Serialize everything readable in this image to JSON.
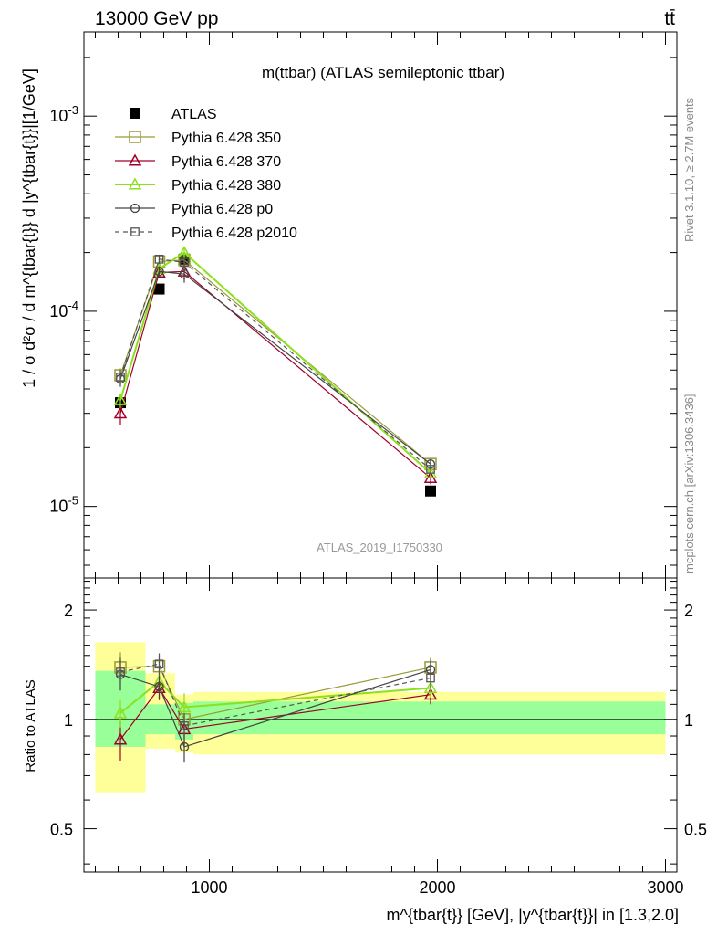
{
  "header": {
    "energy_label": "13000 GeV pp",
    "process_label": "tt̄"
  },
  "side_labels": {
    "rivet": "Rivet 3.1.10, ≥ 2.7M events",
    "source": "mcplots.cern.ch [arXiv:1306.3436]"
  },
  "chart_data": [
    {
      "type": "scatter",
      "title": "m(ttbar) (ATLAS semileptonic ttbar)",
      "ylabel": "1 / σ d²σ / d m^{tbar{t}} d |y^{tbar{t}}|[1/GeV]",
      "xlabel": "",
      "watermark": "ATLAS_2019_I1750330",
      "xlim": [
        450,
        3050
      ],
      "ylim": [
        4.3e-06,
        0.0027
      ],
      "yscale": "log",
      "ytick_labels": [
        "10^-5",
        "10^-4",
        "10^-3"
      ],
      "legend_position": "top-left",
      "x": [
        610,
        780,
        890,
        1970
      ],
      "series": [
        {
          "name": "ATLAS",
          "color": "#000000",
          "marker": "filled-square",
          "values": [
            3.4e-05,
            0.00013,
            0.000185,
            1.2e-05
          ],
          "yerr": [
            [
              3.2e-05,
              3.6e-05
            ],
            [
              0.000124,
              0.000136
            ],
            [
              0.000177,
              0.000193
            ],
            [
              1.15e-05,
              1.25e-05
            ]
          ]
        },
        {
          "name": "Pythia 6.428 350",
          "color": "#999a36",
          "marker": "open-square",
          "line": "solid",
          "values": [
            4.7e-05,
            0.00018,
            0.000183,
            1.65e-05
          ],
          "yerr": [
            [
              4.3e-05,
              5.1e-05
            ],
            [
              0.00017,
              0.00019
            ],
            [
              0.000172,
              0.000194
            ],
            [
              1.56e-05,
              1.74e-05
            ]
          ]
        },
        {
          "name": "Pythia 6.428 370",
          "color": "#a00028",
          "marker": "open-triangle",
          "line": "solid",
          "values": [
            3e-05,
            0.000158,
            0.00016,
            1.4e-05
          ],
          "yerr": [
            [
              2.6e-05,
              3.4e-05
            ],
            [
              0.000148,
              0.000168
            ],
            [
              0.000145,
              0.000175
            ],
            [
              1.3e-05,
              1.5e-05
            ]
          ]
        },
        {
          "name": "Pythia 6.428 380",
          "color": "#8ce01e",
          "marker": "open-triangle",
          "line": "solid",
          "values": [
            3.5e-05,
            0.000165,
            0.0002,
            1.48e-05
          ],
          "yerr": [
            [
              3.2e-05,
              3.8e-05
            ],
            [
              0.000155,
              0.000175
            ],
            [
              0.000185,
              0.000215
            ],
            [
              1.4e-05,
              1.56e-05
            ]
          ]
        },
        {
          "name": "Pythia 6.428 p0",
          "color": "#444444",
          "marker": "open-circle",
          "line": "solid",
          "values": [
            4.5e-05,
            0.00016,
            0.000155,
            1.65e-05
          ],
          "yerr": [
            [
              4.1e-05,
              4.9e-05
            ],
            [
              0.00015,
              0.00017
            ],
            [
              0.00014,
              0.00017
            ],
            [
              1.55e-05,
              1.75e-05
            ]
          ]
        },
        {
          "name": "Pythia 6.428 p2010",
          "color": "#555555",
          "marker": "open-square-small",
          "line": "dashed",
          "values": [
            4.6e-05,
            0.000185,
            0.000178,
            1.55e-05
          ],
          "yerr": [
            [
              4.2e-05,
              5e-05
            ],
            [
              0.000175,
              0.000195
            ],
            [
              0.000168,
              0.000188
            ],
            [
              1.47e-05,
              1.63e-05
            ]
          ]
        }
      ]
    },
    {
      "type": "scatter",
      "title": "",
      "ylabel": "Ratio to ATLAS",
      "xlabel": "m^{tbar{t}} [GeV], |y^{tbar{t}}| in [1.3,2.0]",
      "xlim": [
        450,
        3050
      ],
      "ylim": [
        0.38,
        2.45
      ],
      "yscale": "log",
      "ytick_labels": [
        "0.5",
        "1",
        "2"
      ],
      "xtick_labels": [
        "1000",
        "2000",
        "3000"
      ],
      "bands": [
        {
          "x": [
            500,
            720
          ],
          "yellow": [
            0.63,
            1.63
          ],
          "green": [
            0.84,
            1.36
          ]
        },
        {
          "x": [
            720,
            850
          ],
          "yellow": [
            0.83,
            1.34
          ],
          "green": [
            0.91,
            1.1
          ]
        },
        {
          "x": [
            850,
            930
          ],
          "yellow": [
            0.81,
            1.17
          ],
          "green": [
            0.88,
            1.11
          ]
        },
        {
          "x": [
            930,
            3000
          ],
          "yellow": [
            0.8,
            1.19
          ],
          "green": [
            0.91,
            1.12
          ]
        }
      ],
      "x": [
        610,
        780,
        890,
        1970
      ],
      "series": [
        {
          "name": "Pythia 6.428 350",
          "color": "#999a36",
          "marker": "open-square",
          "line": "solid",
          "values": [
            1.39,
            1.4,
            1.0,
            1.39
          ],
          "yerr": [
            [
              1.25,
              1.53
            ],
            [
              1.3,
              1.5
            ],
            [
              0.93,
              1.07
            ],
            [
              1.3,
              1.48
            ]
          ]
        },
        {
          "name": "Pythia 6.428 370",
          "color": "#a00028",
          "marker": "open-triangle",
          "line": "solid",
          "values": [
            0.88,
            1.22,
            0.94,
            1.17
          ],
          "yerr": [
            [
              0.77,
              0.99
            ],
            [
              1.13,
              1.31
            ],
            [
              0.85,
              1.03
            ],
            [
              1.1,
              1.24
            ]
          ]
        },
        {
          "name": "Pythia 6.428 380",
          "color": "#8ce01e",
          "marker": "open-triangle",
          "line": "solid",
          "values": [
            1.04,
            1.27,
            1.08,
            1.22
          ],
          "yerr": [
            [
              0.95,
              1.13
            ],
            [
              1.18,
              1.36
            ],
            [
              0.98,
              1.18
            ],
            [
              1.15,
              1.29
            ]
          ]
        },
        {
          "name": "Pythia 6.428 p0",
          "color": "#444444",
          "marker": "open-circle",
          "line": "solid",
          "values": [
            1.33,
            1.23,
            0.84,
            1.37
          ],
          "yerr": [
            [
              1.2,
              1.46
            ],
            [
              1.14,
              1.32
            ],
            [
              0.76,
              0.92
            ],
            [
              1.28,
              1.46
            ]
          ]
        },
        {
          "name": "Pythia 6.428 p2010",
          "color": "#555555",
          "marker": "open-square-small",
          "line": "dashed",
          "values": [
            1.35,
            1.42,
            0.96,
            1.3
          ],
          "yerr": [
            [
              1.22,
              1.48
            ],
            [
              1.32,
              1.52
            ],
            [
              0.88,
              1.04
            ],
            [
              1.22,
              1.38
            ]
          ]
        }
      ]
    }
  ]
}
